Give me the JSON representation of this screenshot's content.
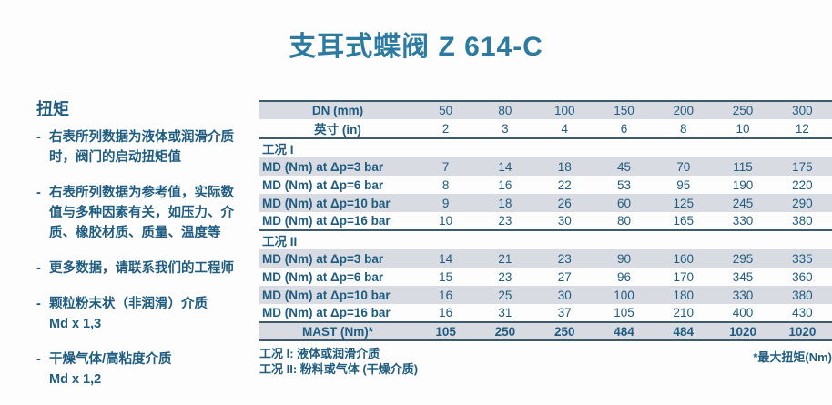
{
  "page": {
    "title": "支耳式蝶阀 Z 614-C"
  },
  "sidebar": {
    "heading": "扭矩",
    "marker": "-",
    "bullets": [
      {
        "text": "右表所列数据为液体或润滑介质时，阀门的启动扭矩值"
      },
      {
        "text": "右表所列数据为参考值，实际数值与多种因素有关，如压力、介质、橡胶材质、质量、温度等"
      },
      {
        "text": "更多数据，请联系我们的工程师"
      },
      {
        "text": "颗粒粉末状（非润滑）介质",
        "sub": "Md x 1,3"
      },
      {
        "text": "干燥气体/高粘度介质",
        "sub": "Md x 1,2"
      }
    ]
  },
  "table": {
    "header": {
      "label": "DN (mm)",
      "values": [
        "50",
        "80",
        "100",
        "150",
        "200",
        "250",
        "300"
      ]
    },
    "subheader": {
      "label": "英寸 (in)",
      "values": [
        "2",
        "3",
        "4",
        "6",
        "8",
        "10",
        "12"
      ]
    },
    "sections": [
      {
        "title": "工况 I",
        "rows": [
          {
            "label": "MD (Nm) at Δp=3 bar",
            "values": [
              "7",
              "14",
              "18",
              "45",
              "70",
              "115",
              "175"
            ]
          },
          {
            "label": "MD (Nm) at Δp=6 bar",
            "values": [
              "8",
              "16",
              "22",
              "53",
              "95",
              "190",
              "220"
            ]
          },
          {
            "label": "MD (Nm) at Δp=10 bar",
            "values": [
              "9",
              "18",
              "26",
              "60",
              "125",
              "245",
              "290"
            ]
          },
          {
            "label": "MD (Nm) at Δp=16 bar",
            "values": [
              "10",
              "23",
              "30",
              "80",
              "165",
              "330",
              "380"
            ]
          }
        ]
      },
      {
        "title": "工况 II",
        "rows": [
          {
            "label": "MD (Nm) at Δp=3 bar",
            "values": [
              "14",
              "21",
              "23",
              "90",
              "160",
              "295",
              "335"
            ]
          },
          {
            "label": "MD (Nm) at Δp=6 bar",
            "values": [
              "15",
              "23",
              "27",
              "96",
              "170",
              "345",
              "360"
            ]
          },
          {
            "label": "MD (Nm) at Δp=10 bar",
            "values": [
              "16",
              "25",
              "30",
              "100",
              "180",
              "330",
              "380"
            ]
          },
          {
            "label": "MD (Nm) at Δp=16 bar",
            "values": [
              "16",
              "31",
              "37",
              "105",
              "210",
              "400",
              "430"
            ]
          }
        ]
      }
    ],
    "footer_row": {
      "label": "MAST (Nm)*",
      "values": [
        "105",
        "250",
        "250",
        "484",
        "484",
        "1020",
        "1020"
      ]
    }
  },
  "notes": {
    "left": [
      {
        "bold": "工况 I:",
        "text": "液体或润滑介质"
      },
      {
        "bold": "工况 II:",
        "text": "粉料或气体 (干燥介质)"
      }
    ],
    "right": "*最大扭矩(Nm)"
  },
  "colors": {
    "title": "#2D7AA0",
    "text": "#1F5C80",
    "row_alt": "#D8DBE2",
    "border": "#3E5A6D"
  }
}
